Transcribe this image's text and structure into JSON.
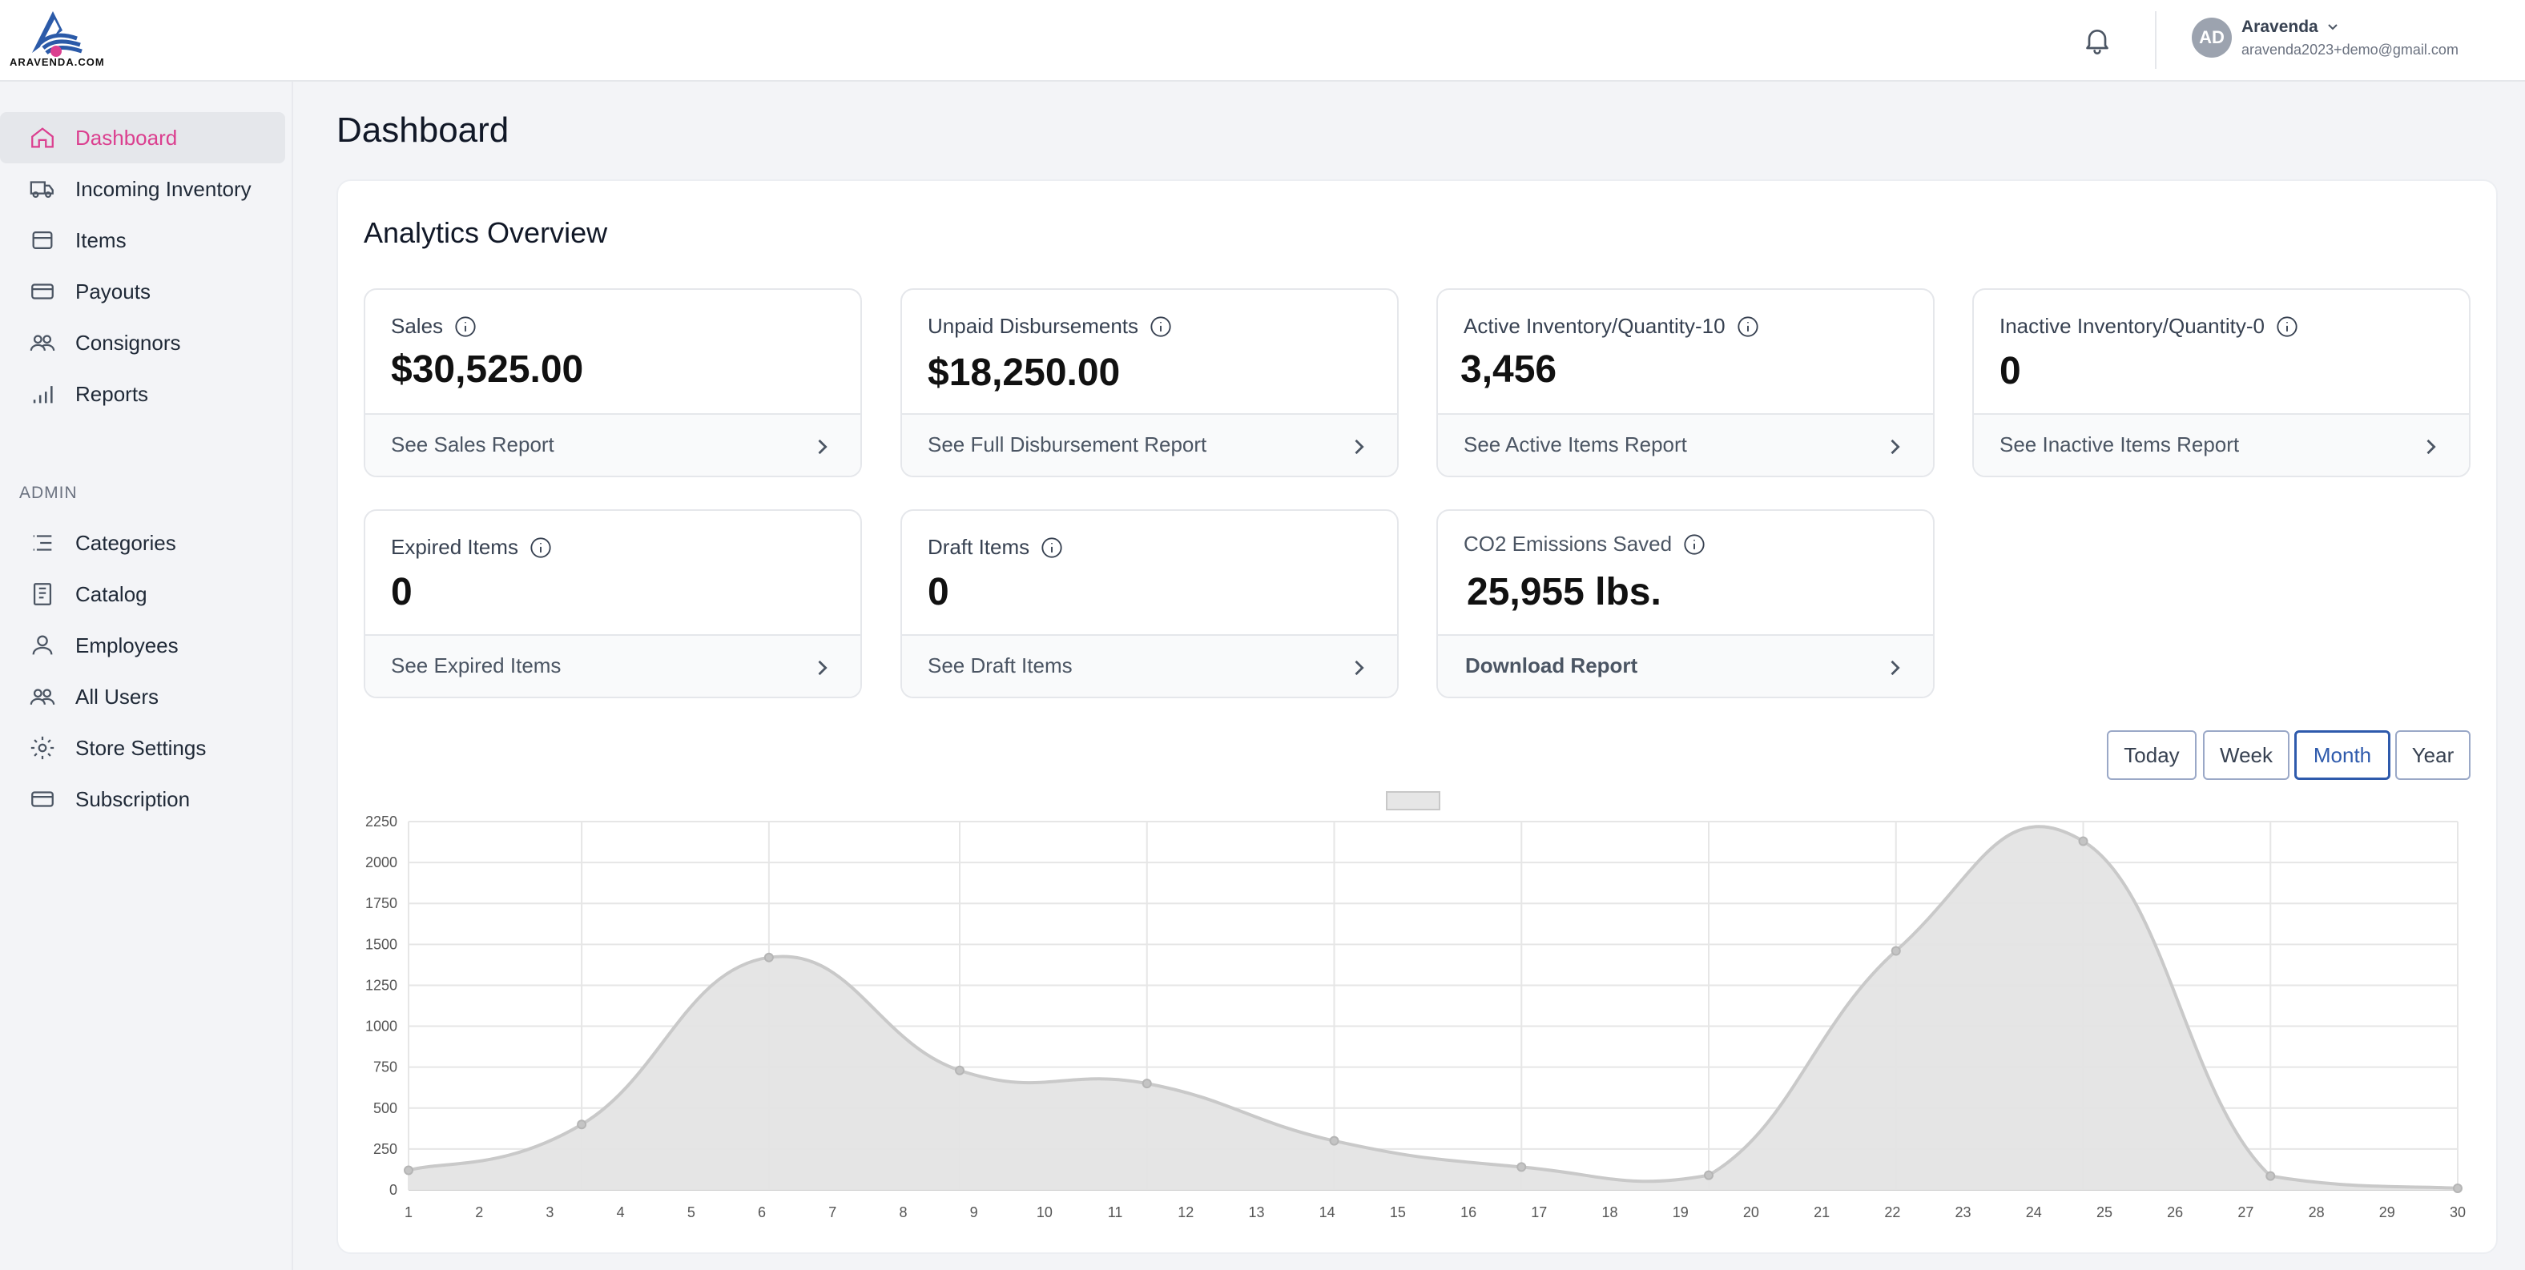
{
  "header": {
    "brand": "ARAVENDA.COM",
    "user_initials": "AD",
    "user_name": "Aravenda",
    "user_email": "aravenda2023+demo@gmail.com"
  },
  "sidebar": {
    "items": [
      {
        "label": "Dashboard",
        "icon": "home-icon",
        "active": true
      },
      {
        "label": "Incoming Inventory",
        "icon": "truck-icon"
      },
      {
        "label": "Items",
        "icon": "box-icon"
      },
      {
        "label": "Payouts",
        "icon": "credit-card-icon"
      },
      {
        "label": "Consignors",
        "icon": "users-icon"
      },
      {
        "label": "Reports",
        "icon": "bar-chart-icon"
      }
    ],
    "admin_label": "ADMIN",
    "admin_items": [
      {
        "label": "Categories",
        "icon": "list-icon"
      },
      {
        "label": "Catalog",
        "icon": "book-icon"
      },
      {
        "label": "Employees",
        "icon": "user-icon"
      },
      {
        "label": "All Users",
        "icon": "users-icon"
      },
      {
        "label": "Store Settings",
        "icon": "gear-icon"
      },
      {
        "label": "Subscription",
        "icon": "credit-card-icon"
      }
    ]
  },
  "main": {
    "page_title": "Dashboard",
    "panel_title": "Analytics Overview",
    "cards": [
      {
        "label": "Sales",
        "value": "$30,525.00",
        "link": "See Sales Report"
      },
      {
        "label": "Unpaid Disbursements",
        "value": "$18,250.00",
        "link": "See Full Disbursement Report"
      },
      {
        "label": "Active Inventory/Quantity-10",
        "value": "3,456",
        "link": "See Active Items Report"
      },
      {
        "label": "Inactive Inventory/Quantity-0",
        "value": "0",
        "link": "See Inactive Items Report"
      },
      {
        "label": "Expired Items",
        "value": "0",
        "link": "See Expired Items"
      },
      {
        "label": "Draft Items",
        "value": "0",
        "link": "See Draft Items"
      },
      {
        "label": "CO2 Emissions Saved",
        "value": "25,955 lbs.",
        "link": "Download Report"
      }
    ],
    "range_buttons": [
      "Today",
      "Week",
      "Month",
      "Year"
    ],
    "active_range": "Month"
  },
  "colors": {
    "accent_pink": "#db3f8f",
    "active_blue": "#2e5aac",
    "area_fill": "#e4e4e4",
    "area_stroke": "#c9c9c9"
  },
  "chart_data": {
    "type": "area",
    "x": [
      1,
      2,
      3,
      4,
      5,
      6,
      7,
      8,
      9,
      10,
      11,
      12,
      13,
      14,
      15,
      16,
      17,
      18,
      19,
      20,
      21,
      22,
      23,
      24,
      25,
      26,
      27,
      28,
      29,
      30
    ],
    "points": [
      {
        "x": 1,
        "y": 120
      },
      {
        "x": 3.45,
        "y": 400
      },
      {
        "x": 6.1,
        "y": 1420
      },
      {
        "x": 8.8,
        "y": 730
      },
      {
        "x": 11.45,
        "y": 650
      },
      {
        "x": 14.1,
        "y": 300
      },
      {
        "x": 16.75,
        "y": 140
      },
      {
        "x": 19.4,
        "y": 90
      },
      {
        "x": 22.05,
        "y": 1460
      },
      {
        "x": 24.7,
        "y": 2130
      },
      {
        "x": 27.35,
        "y": 85
      },
      {
        "x": 30,
        "y": 10
      }
    ],
    "yticks": [
      0,
      250,
      500,
      750,
      1000,
      1250,
      1500,
      1750,
      2000,
      2250
    ],
    "ylim": [
      0,
      2250
    ],
    "xlim": [
      1,
      30
    ],
    "grid": true,
    "legend": "top-center"
  }
}
